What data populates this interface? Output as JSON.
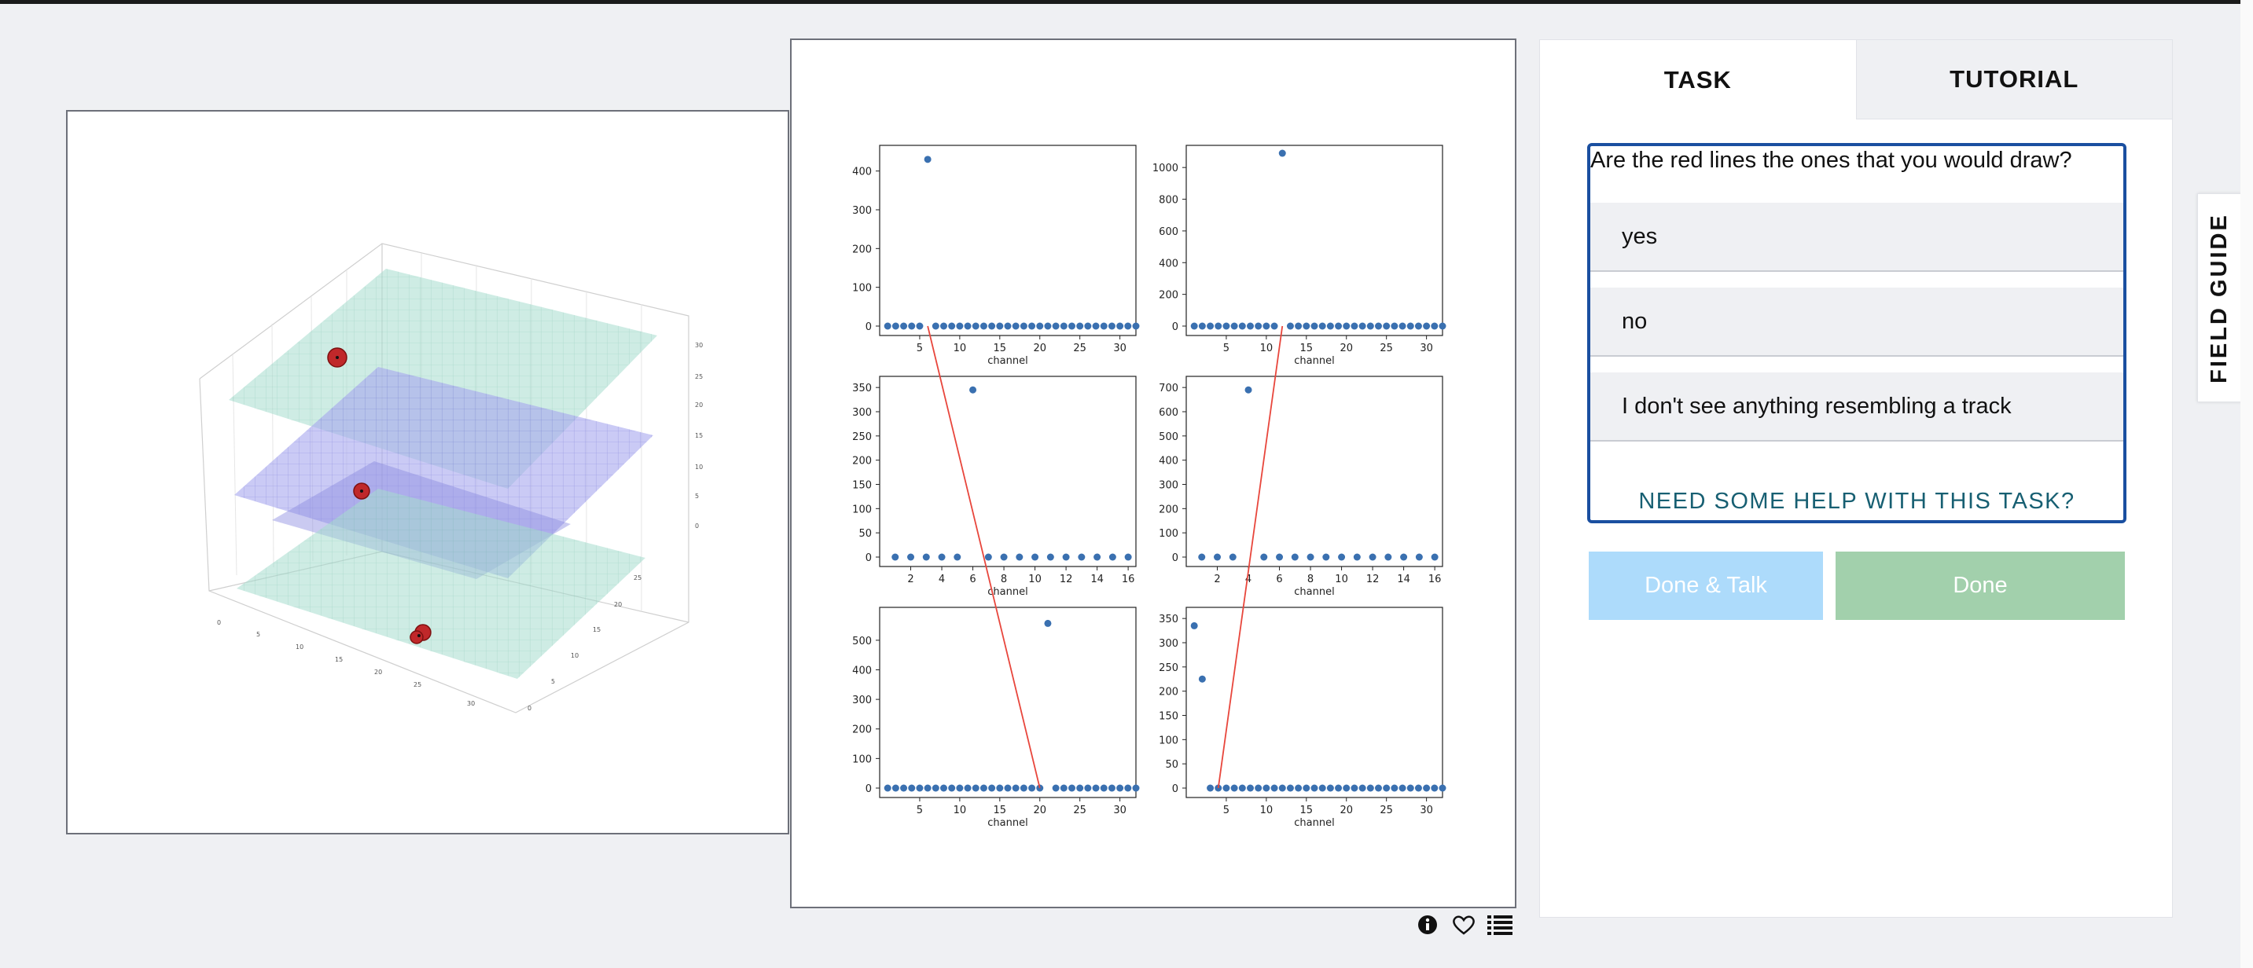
{
  "tabs": {
    "task": "TASK",
    "tutorial": "TUTORIAL"
  },
  "question": "Are the red lines the ones that you would draw?",
  "answers": [
    "yes",
    "no",
    "I don't see anything resembling a track"
  ],
  "help_link": "NEED SOME HELP WITH THIS TASK?",
  "buttons": {
    "done_talk": "Done & Talk",
    "done": "Done"
  },
  "field_guide": "FIELD GUIDE",
  "icons": [
    "info-icon",
    "heart-icon",
    "list-icon"
  ],
  "colors": {
    "accent": "#1a4fa0",
    "done_talk": "#addbfb",
    "done": "#a2d0ac",
    "track_line": "#e8463c",
    "points": "#3a70b0"
  },
  "chart_data": [
    {
      "type": "scatter",
      "xlabel": "channel",
      "xticks": [
        5,
        10,
        15,
        20,
        25,
        30
      ],
      "yticks": [
        0,
        100,
        200,
        300,
        400
      ],
      "ylim": [
        0,
        450
      ],
      "xlim": [
        0,
        32
      ],
      "points": [
        {
          "x": 6,
          "y": 430
        }
      ],
      "zero_channels": "1-32"
    },
    {
      "type": "scatter",
      "xlabel": "channel",
      "xticks": [
        5,
        10,
        15,
        20,
        25,
        30
      ],
      "yticks": [
        0,
        200,
        400,
        600,
        800,
        1000
      ],
      "ylim": [
        0,
        1100
      ],
      "xlim": [
        0,
        32
      ],
      "points": [
        {
          "x": 12,
          "y": 1090
        }
      ],
      "zero_channels": "1-32"
    },
    {
      "type": "scatter",
      "xlabel": "channel",
      "xticks": [
        2,
        4,
        6,
        8,
        10,
        12,
        14,
        16
      ],
      "yticks": [
        0,
        50,
        100,
        150,
        200,
        250,
        300,
        350
      ],
      "ylim": [
        0,
        360
      ],
      "xlim": [
        0,
        16.5
      ],
      "points": [
        {
          "x": 6,
          "y": 345
        }
      ],
      "zero_channels": "1-16"
    },
    {
      "type": "scatter",
      "xlabel": "channel",
      "xticks": [
        2,
        4,
        6,
        8,
        10,
        12,
        14,
        16
      ],
      "yticks": [
        0,
        100,
        200,
        300,
        400,
        500,
        600,
        700
      ],
      "ylim": [
        0,
        720
      ],
      "xlim": [
        0,
        16.5
      ],
      "points": [
        {
          "x": 4,
          "y": 690
        }
      ],
      "zero_channels": "1-16"
    },
    {
      "type": "scatter",
      "xlabel": "channel",
      "xticks": [
        5,
        10,
        15,
        20,
        25,
        30
      ],
      "yticks": [
        0,
        100,
        200,
        300,
        400,
        500
      ],
      "ylim": [
        0,
        590
      ],
      "xlim": [
        0,
        32
      ],
      "points": [
        {
          "x": 21,
          "y": 557
        }
      ],
      "zero_channels": "1-32"
    },
    {
      "type": "scatter",
      "xlabel": "channel",
      "xticks": [
        5,
        10,
        15,
        20,
        25,
        30
      ],
      "yticks": [
        0,
        50,
        100,
        150,
        200,
        250,
        300,
        350
      ],
      "ylim": [
        0,
        360
      ],
      "xlim": [
        0,
        32
      ],
      "points": [
        {
          "x": 1,
          "y": 335
        },
        {
          "x": 2,
          "y": 225
        }
      ],
      "zero_channels": "1-32"
    }
  ]
}
